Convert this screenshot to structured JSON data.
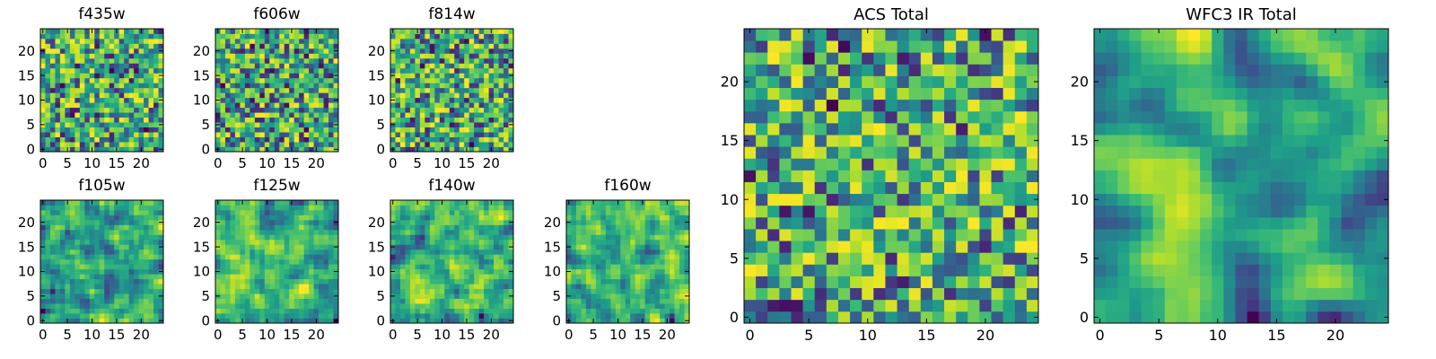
{
  "chart_data": [
    {
      "type": "heatmap",
      "title": "f435w",
      "colormap": "viridis",
      "grid_size": 25,
      "seed": 11,
      "smoothness": 0,
      "bias": 0.55,
      "xticks": [
        0,
        5,
        10,
        15,
        20
      ],
      "yticks": [
        0,
        5,
        10,
        15,
        20
      ],
      "xlim": [
        0,
        24
      ],
      "ylim": [
        0,
        24
      ]
    },
    {
      "type": "heatmap",
      "title": "f606w",
      "colormap": "viridis",
      "grid_size": 25,
      "seed": 23,
      "smoothness": 0,
      "bias": 0.5,
      "xticks": [
        0,
        5,
        10,
        15,
        20
      ],
      "yticks": [
        0,
        5,
        10,
        15,
        20
      ],
      "xlim": [
        0,
        24
      ],
      "ylim": [
        0,
        24
      ]
    },
    {
      "type": "heatmap",
      "title": "f814w",
      "colormap": "viridis",
      "grid_size": 25,
      "seed": 37,
      "smoothness": 0,
      "bias": 0.58,
      "xticks": [
        0,
        5,
        10,
        15,
        20
      ],
      "yticks": [
        0,
        5,
        10,
        15,
        20
      ],
      "xlim": [
        0,
        24
      ],
      "ylim": [
        0,
        24
      ]
    },
    {
      "type": "heatmap",
      "title": "f105w",
      "colormap": "viridis",
      "grid_size": 25,
      "seed": 41,
      "smoothness": 1,
      "bias": 0.6,
      "xticks": [
        0,
        5,
        10,
        15,
        20
      ],
      "yticks": [
        0,
        5,
        10,
        15,
        20
      ],
      "xlim": [
        0,
        24
      ],
      "ylim": [
        0,
        24
      ]
    },
    {
      "type": "heatmap",
      "title": "f125w",
      "colormap": "viridis",
      "grid_size": 25,
      "seed": 53,
      "smoothness": 1,
      "bias": 0.6,
      "xticks": [
        0,
        5,
        10,
        15,
        20
      ],
      "yticks": [
        0,
        5,
        10,
        15,
        20
      ],
      "xlim": [
        0,
        24
      ],
      "ylim": [
        0,
        24
      ]
    },
    {
      "type": "heatmap",
      "title": "f140w",
      "colormap": "viridis",
      "grid_size": 25,
      "seed": 67,
      "smoothness": 1,
      "bias": 0.6,
      "xticks": [
        0,
        5,
        10,
        15,
        20
      ],
      "yticks": [
        0,
        5,
        10,
        15,
        20
      ],
      "xlim": [
        0,
        24
      ],
      "ylim": [
        0,
        24
      ]
    },
    {
      "type": "heatmap",
      "title": "f160w",
      "colormap": "viridis",
      "grid_size": 25,
      "seed": 79,
      "smoothness": 1,
      "bias": 0.6,
      "xticks": [
        0,
        5,
        10,
        15,
        20
      ],
      "yticks": [
        0,
        5,
        10,
        15,
        20
      ],
      "xlim": [
        0,
        24
      ],
      "ylim": [
        0,
        24
      ]
    },
    {
      "type": "heatmap",
      "title": "ACS Total",
      "colormap": "viridis",
      "grid_size": 25,
      "seed": 97,
      "smoothness": 0,
      "bias": 0.62,
      "xticks": [
        0,
        5,
        10,
        15,
        20
      ],
      "yticks": [
        0,
        5,
        10,
        15,
        20
      ],
      "xlim": [
        0,
        24
      ],
      "ylim": [
        0,
        24
      ]
    },
    {
      "type": "heatmap",
      "title": "WFC3 IR Total",
      "colormap": "viridis",
      "grid_size": 25,
      "seed": 101,
      "smoothness": 2,
      "bias": 0.6,
      "xticks": [
        0,
        5,
        10,
        15,
        20
      ],
      "yticks": [
        0,
        5,
        10,
        15,
        20
      ],
      "xlim": [
        0,
        24
      ],
      "ylim": [
        0,
        24
      ]
    }
  ]
}
